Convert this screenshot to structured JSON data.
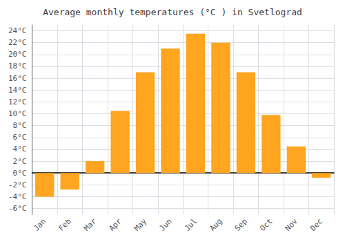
{
  "chart_data": {
    "type": "bar",
    "title": "Average monthly temperatures (°C ) in Svetlograd",
    "categories": [
      "Jan",
      "Feb",
      "Mar",
      "Apr",
      "May",
      "Jun",
      "Jul",
      "Aug",
      "Sep",
      "Oct",
      "Nov",
      "Dec"
    ],
    "values": [
      -4.0,
      -2.8,
      2.0,
      10.5,
      17.0,
      21.0,
      23.5,
      22.0,
      17.0,
      9.8,
      4.5,
      -0.8
    ],
    "color": "#FFA520",
    "ylim": [
      -7,
      25
    ],
    "yticks": [
      {
        "value": -6,
        "label": "-6°C"
      },
      {
        "value": -4,
        "label": "-4°C"
      },
      {
        "value": -2,
        "label": "-2°C"
      },
      {
        "value": 0,
        "label": "0°C"
      },
      {
        "value": 2,
        "label": "2°C"
      },
      {
        "value": 4,
        "label": "4°C"
      },
      {
        "value": 6,
        "label": "6°C"
      },
      {
        "value": 8,
        "label": "8°C"
      },
      {
        "value": 10,
        "label": "10°C"
      },
      {
        "value": 12,
        "label": "12°C"
      },
      {
        "value": 14,
        "label": "14°C"
      },
      {
        "value": 16,
        "label": "16°C"
      },
      {
        "value": 18,
        "label": "18°C"
      },
      {
        "value": 20,
        "label": "20°C"
      },
      {
        "value": 22,
        "label": "22°C"
      },
      {
        "value": 24,
        "label": "24°C"
      }
    ],
    "grid": true
  }
}
